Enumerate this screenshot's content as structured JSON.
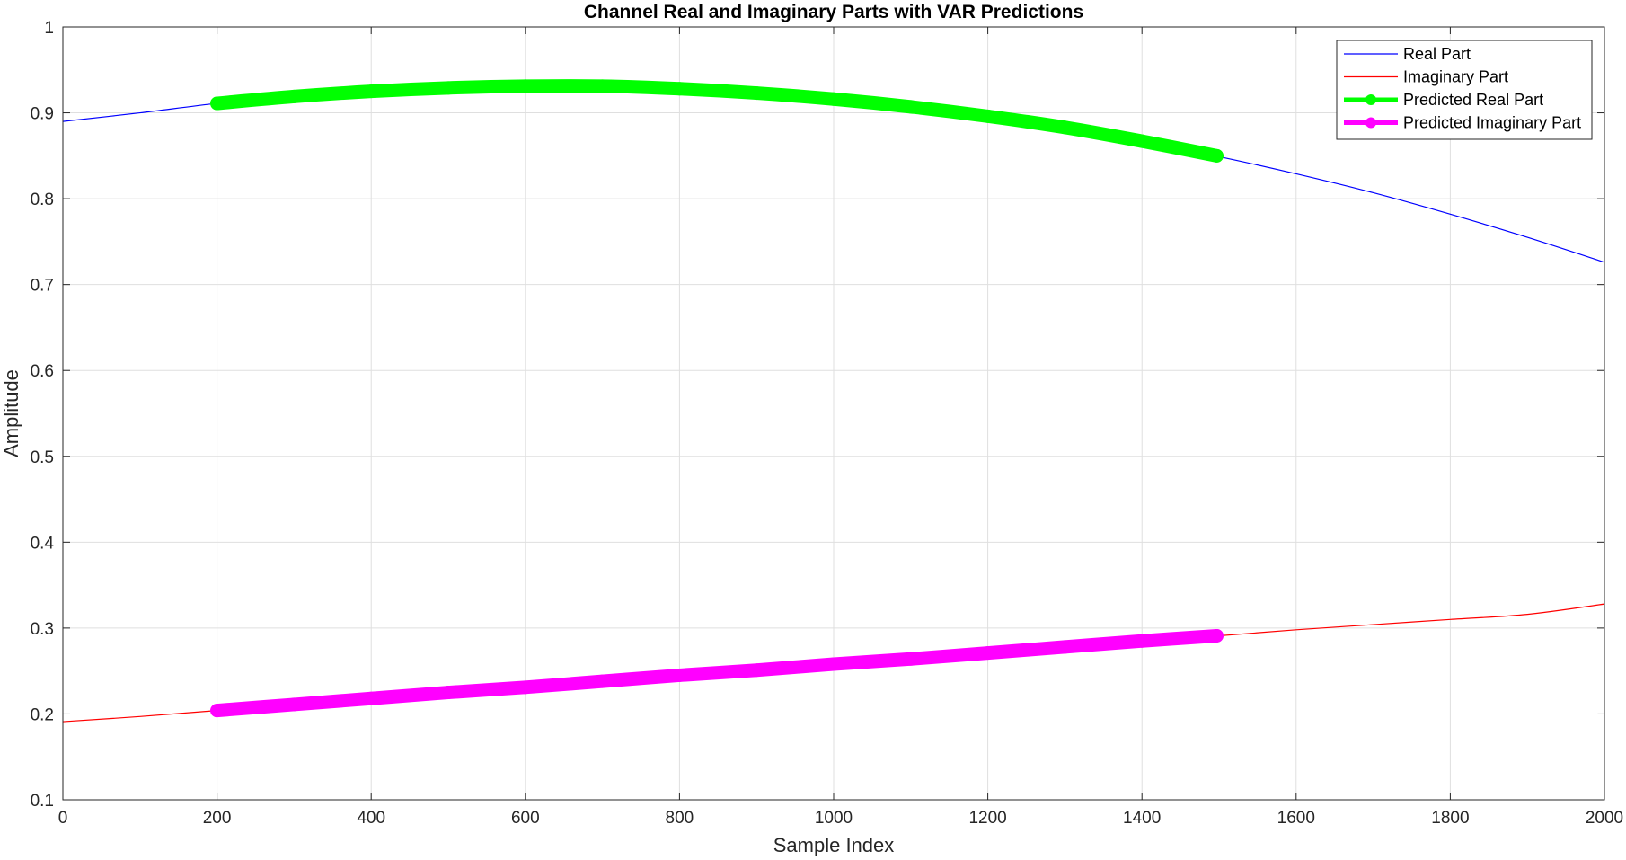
{
  "chart_data": {
    "type": "line",
    "title": "Channel Real and Imaginary Parts with VAR Predictions",
    "xlabel": "Sample Index",
    "ylabel": "Amplitude",
    "xlim": [
      0,
      2000
    ],
    "ylim": [
      0.1,
      1
    ],
    "xticks": [
      "0",
      "200",
      "400",
      "600",
      "800",
      "1000",
      "1200",
      "1400",
      "1600",
      "1800",
      "2000"
    ],
    "yticks": [
      "0.1",
      "0.2",
      "0.3",
      "0.4",
      "0.5",
      "0.6",
      "0.7",
      "0.8",
      "0.9",
      "1"
    ],
    "grid": true,
    "legend_position": "top-right",
    "series": [
      {
        "name": "Real Part",
        "color": "#0000ff",
        "style": "thin-line",
        "x": [
          0,
          100,
          200,
          300,
          400,
          500,
          600,
          700,
          800,
          900,
          1000,
          1100,
          1200,
          1300,
          1400,
          1500,
          1600,
          1700,
          1800,
          1900,
          2000
        ],
        "y": [
          0.89,
          0.9,
          0.911,
          0.919,
          0.925,
          0.929,
          0.931,
          0.931,
          0.928,
          0.923,
          0.916,
          0.907,
          0.896,
          0.883,
          0.867,
          0.849,
          0.829,
          0.807,
          0.782,
          0.755,
          0.726
        ]
      },
      {
        "name": "Imaginary Part",
        "color": "#ff0000",
        "style": "thin-line",
        "x": [
          0,
          100,
          200,
          300,
          400,
          500,
          600,
          700,
          800,
          900,
          1000,
          1100,
          1200,
          1300,
          1400,
          1500,
          1600,
          1700,
          1800,
          1900,
          2000
        ],
        "y": [
          0.191,
          0.197,
          0.204,
          0.211,
          0.218,
          0.225,
          0.231,
          0.238,
          0.245,
          0.251,
          0.258,
          0.264,
          0.271,
          0.278,
          0.285,
          0.291,
          0.298,
          0.304,
          0.31,
          0.316,
          0.328
        ]
      },
      {
        "name": "Predicted Real Part",
        "color": "#00ff00",
        "style": "thick-line-markers",
        "x": [
          200,
          300,
          400,
          500,
          600,
          700,
          800,
          900,
          1000,
          1100,
          1200,
          1300,
          1400,
          1497
        ],
        "y": [
          0.911,
          0.919,
          0.925,
          0.929,
          0.931,
          0.931,
          0.928,
          0.923,
          0.916,
          0.907,
          0.896,
          0.883,
          0.867,
          0.85
        ]
      },
      {
        "name": "Predicted Imaginary Part",
        "color": "#ff00ff",
        "style": "thick-line-markers",
        "x": [
          200,
          300,
          400,
          500,
          600,
          700,
          800,
          900,
          1000,
          1100,
          1200,
          1300,
          1400,
          1497
        ],
        "y": [
          0.204,
          0.211,
          0.218,
          0.225,
          0.231,
          0.238,
          0.245,
          0.251,
          0.258,
          0.264,
          0.271,
          0.278,
          0.285,
          0.291
        ]
      }
    ]
  }
}
